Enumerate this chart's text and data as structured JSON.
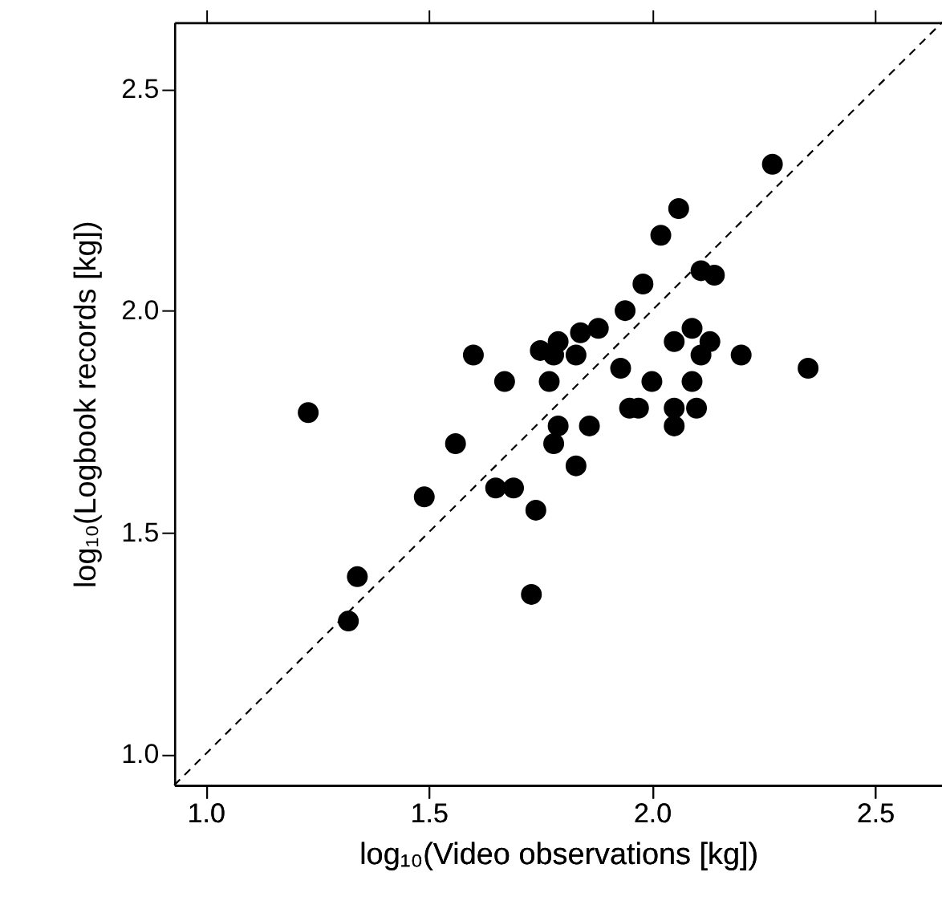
{
  "chart_data": {
    "type": "scatter",
    "xlabel": "log₁₀(Video observations [kg])",
    "ylabel": "log₁₀(Logbook records [kg])",
    "xlim": [
      0.93,
      2.65
    ],
    "xticks": [
      {
        "value": 1.0,
        "label": "1.0"
      },
      {
        "value": 1.5,
        "label": "1.5"
      },
      {
        "value": 2.0,
        "label": "2.0"
      },
      {
        "value": 2.5,
        "label": "2.5"
      }
    ],
    "ylim": [
      0.93,
      2.65
    ],
    "yticks": [
      {
        "value": 1.0,
        "label": "1.0"
      },
      {
        "value": 1.5,
        "label": "1.5"
      },
      {
        "value": 2.0,
        "label": "2.0"
      },
      {
        "value": 2.5,
        "label": "2.5"
      }
    ],
    "grid": false,
    "marker": "circle",
    "tick_labels": [
      "x",
      "y"
    ],
    "series": [
      {
        "color": "#000000",
        "x": [
          1.23,
          1.32,
          1.34,
          1.49,
          1.56,
          1.6,
          1.67,
          1.65,
          1.69,
          1.74,
          1.73,
          1.75,
          1.79,
          1.78,
          1.83,
          1.84,
          1.88,
          1.77,
          1.79,
          1.78,
          1.86,
          1.83,
          2.27,
          2.06,
          2.02,
          1.98,
          1.94,
          2.11,
          2.14,
          2.09,
          2.05,
          2.13,
          2.11,
          2.2,
          2.35,
          1.93,
          2.0,
          2.09,
          1.95,
          1.97,
          2.05,
          2.1,
          2.05
        ],
        "values": [
          1.77,
          1.3,
          1.4,
          1.58,
          1.7,
          1.9,
          1.84,
          1.6,
          1.6,
          1.55,
          1.36,
          1.91,
          1.93,
          1.9,
          1.9,
          1.95,
          1.96,
          1.84,
          1.74,
          1.7,
          1.74,
          1.65,
          2.33,
          2.23,
          2.17,
          2.06,
          2.0,
          2.09,
          2.08,
          1.96,
          1.93,
          1.93,
          1.9,
          1.9,
          1.87,
          1.87,
          1.84,
          1.84,
          1.78,
          1.78,
          1.78,
          1.78,
          1.74
        ]
      },
      {
        "type": "line",
        "color": "#000000",
        "line_style": "dashed",
        "marker": "none",
        "x": [
          0.93,
          2.65
        ],
        "values": [
          0.93,
          2.65
        ]
      }
    ]
  }
}
